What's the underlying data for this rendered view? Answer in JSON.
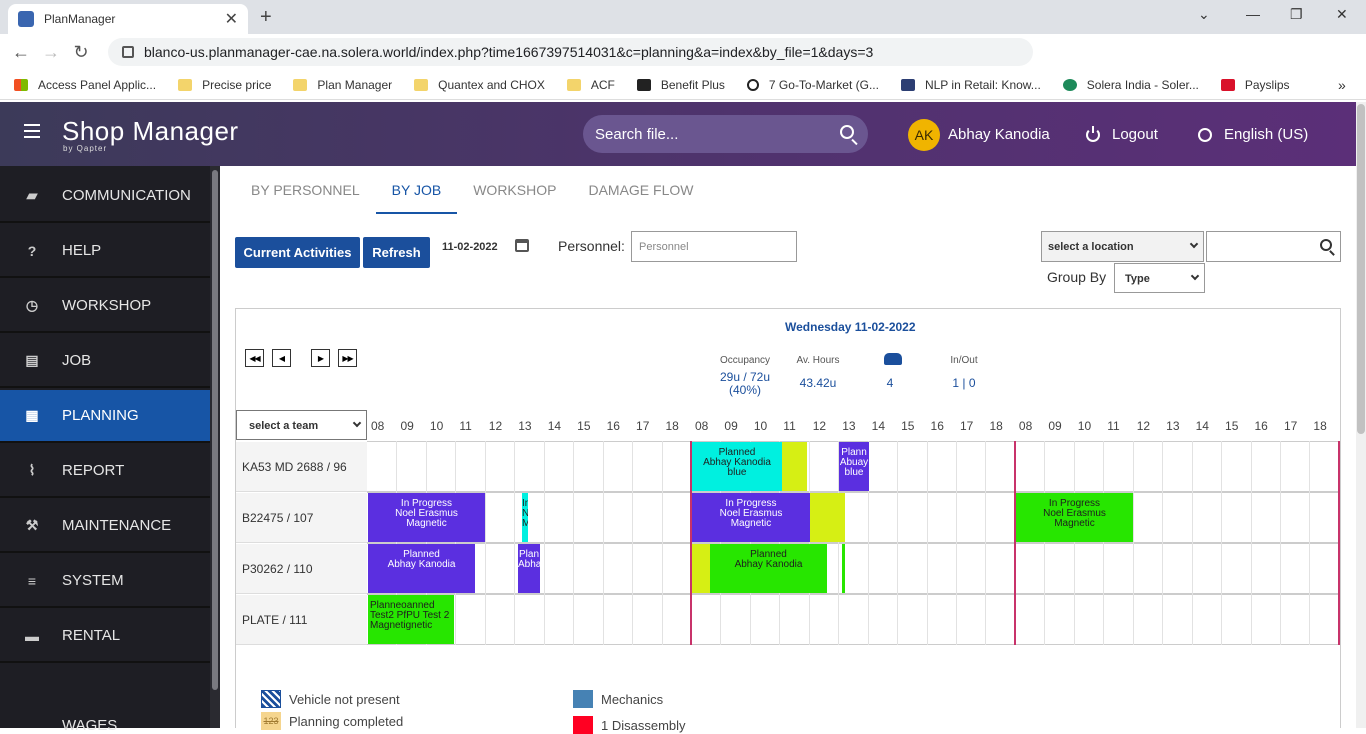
{
  "browser": {
    "tab_title": "PlanManager",
    "url": "blanco-us.planmanager-cae.na.solera.world/index.php?time1667397514031&c=planning&a=index&by_file=1&days=3",
    "bookmarks": [
      "Access Panel Applic...",
      "Precise price",
      "Plan Manager",
      "Quantex and CHOX",
      "ACF",
      "Benefit Plus",
      "7 Go-To-Market (G...",
      "NLP in Retail: Know...",
      "Solera India - Soler...",
      "Payslips"
    ]
  },
  "header": {
    "brand": "Shop Manager",
    "brand_sub": "by Qapter",
    "search_placeholder": "Search file...",
    "avatar_initials": "AK",
    "user_name": "Abhay Kanodia",
    "logout": "Logout",
    "language": "English (US)"
  },
  "sidebar": {
    "items": [
      {
        "label": "COMMUNICATION",
        "icon": "chat-icon"
      },
      {
        "label": "HELP",
        "icon": "question-icon"
      },
      {
        "label": "WORKSHOP",
        "icon": "clock-icon"
      },
      {
        "label": "JOB",
        "icon": "file-icon"
      },
      {
        "label": "PLANNING",
        "icon": "calendar-icon",
        "active": true
      },
      {
        "label": "REPORT",
        "icon": "chart-icon"
      },
      {
        "label": "MAINTENANCE",
        "icon": "wrench-icon"
      },
      {
        "label": "SYSTEM",
        "icon": "sliders-icon"
      },
      {
        "label": "RENTAL",
        "icon": "car-icon"
      },
      {
        "label": "WAGES",
        "icon": "money-icon"
      }
    ]
  },
  "tabs": [
    "BY PERSONNEL",
    "BY JOB",
    "WORKSHOP",
    "DAMAGE FLOW"
  ],
  "toolbar": {
    "current_activities": "Current Activities",
    "refresh": "Refresh",
    "date": "11-02-2022",
    "personnel_label": "Personnel:",
    "personnel_placeholder": "Personnel",
    "location_select": "select a location",
    "group_by_label": "Group By",
    "group_by_value": "Type"
  },
  "planner": {
    "day_title": "Wednesday 11-02-2022",
    "stats": {
      "occupancy_label": "Occupancy",
      "occupancy_value": "29u / 72u",
      "occupancy_pct": "(40%)",
      "avhours_label": "Av. Hours",
      "avhours_value": "43.42u",
      "vehicles_value": "4",
      "inout_label": "In/Out",
      "inout_value": "1 | 0"
    },
    "team_select": "select a team",
    "hours": [
      "08",
      "09",
      "10",
      "11",
      "12",
      "13",
      "14",
      "15",
      "16",
      "17",
      "18",
      "08",
      "09",
      "10",
      "11",
      "12",
      "13",
      "14",
      "15",
      "16",
      "17",
      "18",
      "08",
      "09",
      "10",
      "11",
      "12",
      "13",
      "14",
      "15",
      "16",
      "17",
      "18"
    ],
    "rows": [
      "KA53 MD 2688 / 96",
      "B22475 / 107",
      "P30262 / 110",
      "PLATE / 111"
    ],
    "blocks": {
      "k1": {
        "l1": "Planned",
        "l2": "Abhay Kanodia",
        "l3": "blue"
      },
      "k1b": {
        "l1": "Plann",
        "l2": "Abuay",
        "l3": "blue"
      },
      "b1": {
        "l1": "In Progress",
        "l2": "Noel Erasmus",
        "l3": "Magnetic"
      },
      "b1n": {
        "l1": "In",
        "l2": "N",
        "l3": "M"
      },
      "b2": {
        "l1": "In Progress",
        "l2": "Noel Erasmus",
        "l3": "Magnetic"
      },
      "b3": {
        "l1": "In Progress",
        "l2": "Noel Erasmus",
        "l3": "Magnetic"
      },
      "p1": {
        "l1": "Planned",
        "l2": "Abhay Kanodia"
      },
      "p1n": {
        "l1": "Plan",
        "l2": "Abha"
      },
      "p2": {
        "l1": "Planned",
        "l2": "Abhay Kanodia"
      },
      "pl1": {
        "l1": "Planneoanned",
        "l2": "Test2 PfPU Test 2",
        "l3": "Magnetignetic"
      }
    }
  },
  "legend": {
    "not_present": "Vehicle not present",
    "completed": "Planning completed",
    "completed_num": "123",
    "mechanics": "Mechanics",
    "disassembly": "1 Disassembly"
  },
  "colors": {
    "accent": "#1755a6",
    "purple": "#5b2fe0",
    "green": "#27e600",
    "cyan": "#00f0e0",
    "lime": "#d6ef14"
  }
}
